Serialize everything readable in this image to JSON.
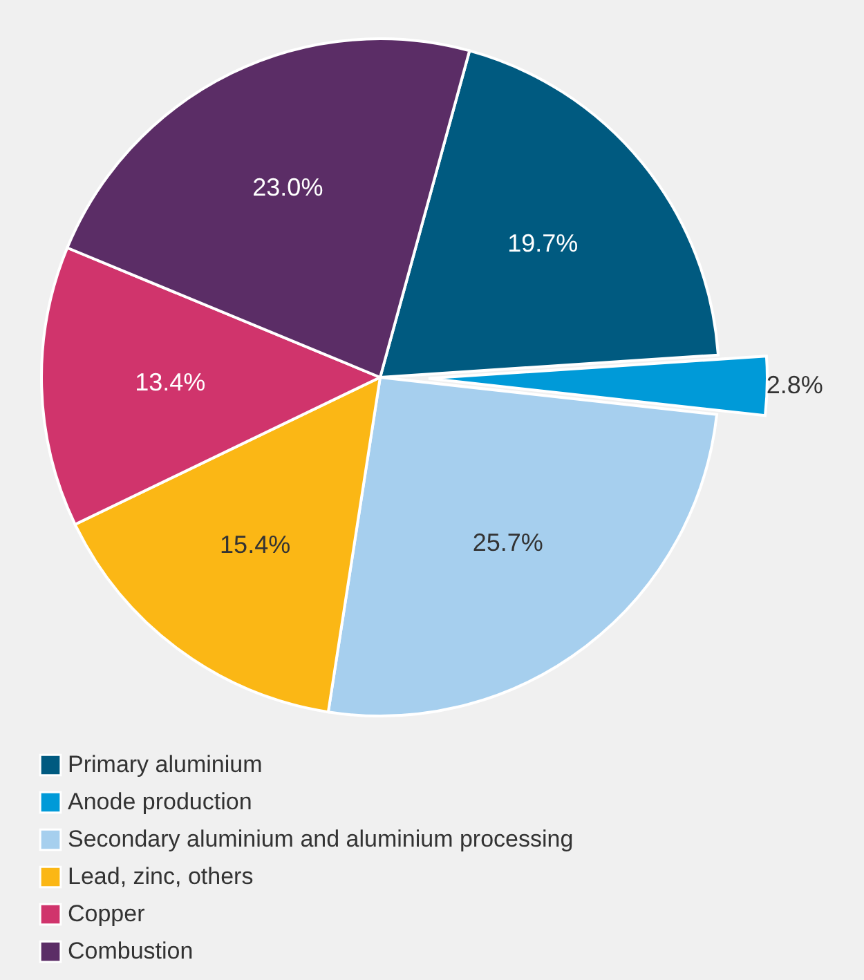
{
  "chart_data": {
    "type": "pie",
    "categories": [
      "Primary aluminium",
      "Anode production",
      "Secondary aluminium and aluminium processing",
      "Lead, zinc, others",
      "Copper",
      "Combustion"
    ],
    "values": [
      19.7,
      2.8,
      25.7,
      15.4,
      13.4,
      23.0
    ],
    "colors": [
      "#005a80",
      "#009ad8",
      "#a6cfee",
      "#fbb715",
      "#d0346c",
      "#5b2d66"
    ],
    "value_labels": [
      "19.7%",
      "2.8%",
      "25.7%",
      "15.4%",
      "13.4%",
      "23.0%"
    ],
    "legend": "bottom left"
  }
}
